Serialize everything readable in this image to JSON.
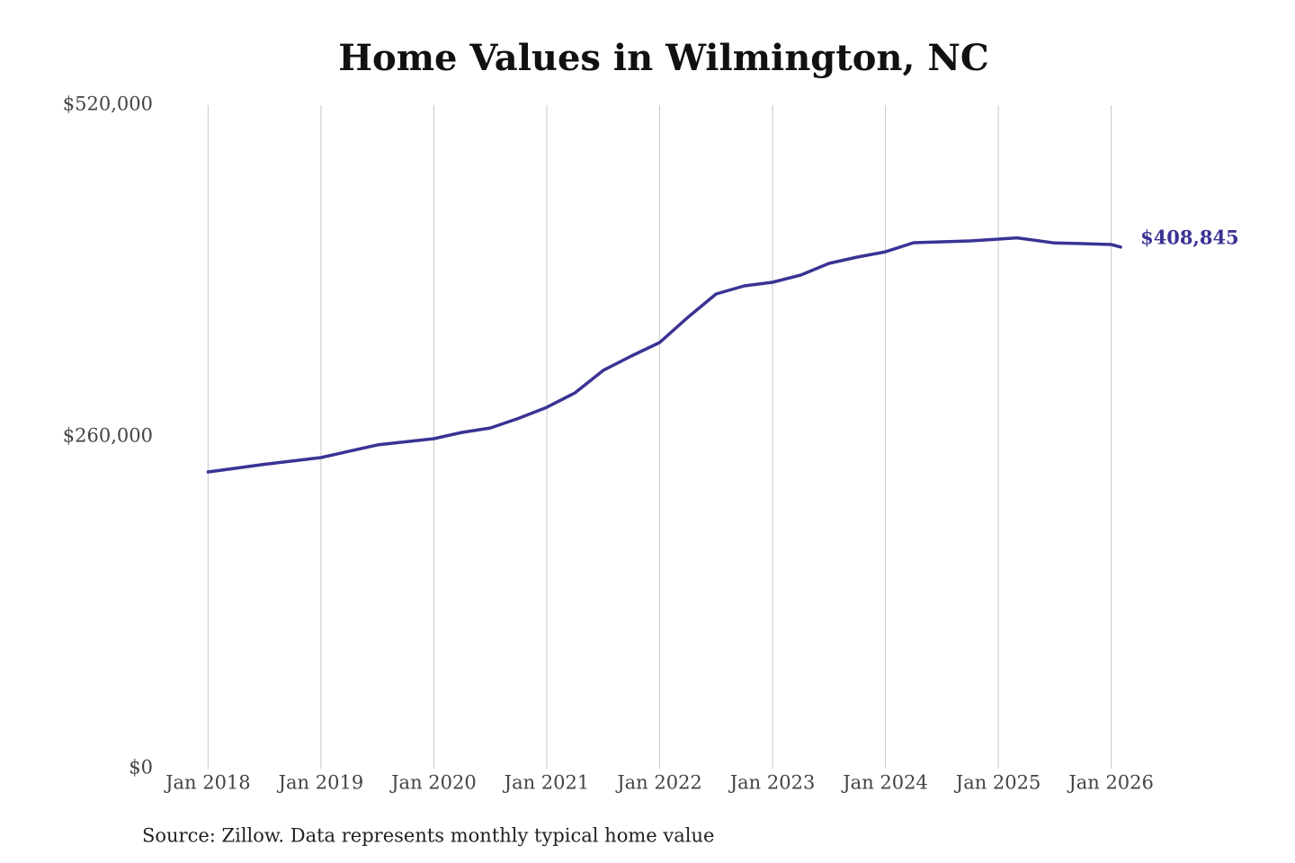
{
  "chart_data": {
    "type": "line",
    "title": "Home Values in Wilmington, NC",
    "source": "Source: Zillow. Data represents monthly typical home value",
    "x": [
      "2018-01",
      "2018-07",
      "2019-01",
      "2019-07",
      "2020-01",
      "2020-04",
      "2020-07",
      "2020-10",
      "2021-01",
      "2021-04",
      "2021-07",
      "2021-10",
      "2022-01",
      "2022-04",
      "2022-07",
      "2022-10",
      "2023-01",
      "2023-04",
      "2023-07",
      "2023-10",
      "2024-01",
      "2024-04",
      "2024-07",
      "2024-10",
      "2025-01",
      "2025-03",
      "2025-07",
      "2025-10",
      "2026-01",
      "2026-02"
    ],
    "series": [
      {
        "name": "Home value",
        "color": "#3a3394",
        "values": [
          232500,
          238500,
          243800,
          253700,
          258600,
          263500,
          267000,
          274500,
          283200,
          294500,
          312100,
          323400,
          334000,
          353700,
          372000,
          378400,
          381200,
          386800,
          396000,
          400900,
          405100,
          412200,
          412900,
          413600,
          415000,
          416000,
          412000,
          411500,
          410800,
          408845
        ],
        "value_labels": [
          null,
          null,
          null,
          null,
          null,
          null,
          null,
          null,
          null,
          null,
          null,
          null,
          null,
          null,
          null,
          null,
          null,
          null,
          null,
          null,
          null,
          null,
          null,
          null,
          null,
          null,
          null,
          null,
          null,
          "$408,845"
        ]
      }
    ],
    "xlim": [
      "2017-10",
      "2026-04"
    ],
    "xticks": [
      {
        "value": "2018-01",
        "label": "Jan 2018"
      },
      {
        "value": "2019-01",
        "label": "Jan 2019"
      },
      {
        "value": "2020-01",
        "label": "Jan 2020"
      },
      {
        "value": "2021-01",
        "label": "Jan 2021"
      },
      {
        "value": "2022-01",
        "label": "Jan 2022"
      },
      {
        "value": "2023-01",
        "label": "Jan 2023"
      },
      {
        "value": "2024-01",
        "label": "Jan 2024"
      },
      {
        "value": "2025-01",
        "label": "Jan 2025"
      },
      {
        "value": "2026-01",
        "label": "Jan 2026"
      }
    ],
    "ylim": [
      0,
      520000
    ],
    "yticks": [
      {
        "value": 0,
        "label": "$0"
      },
      {
        "value": 260000,
        "label": "$260,000"
      },
      {
        "value": 520000,
        "label": "$520,000"
      }
    ],
    "grid": "x"
  }
}
